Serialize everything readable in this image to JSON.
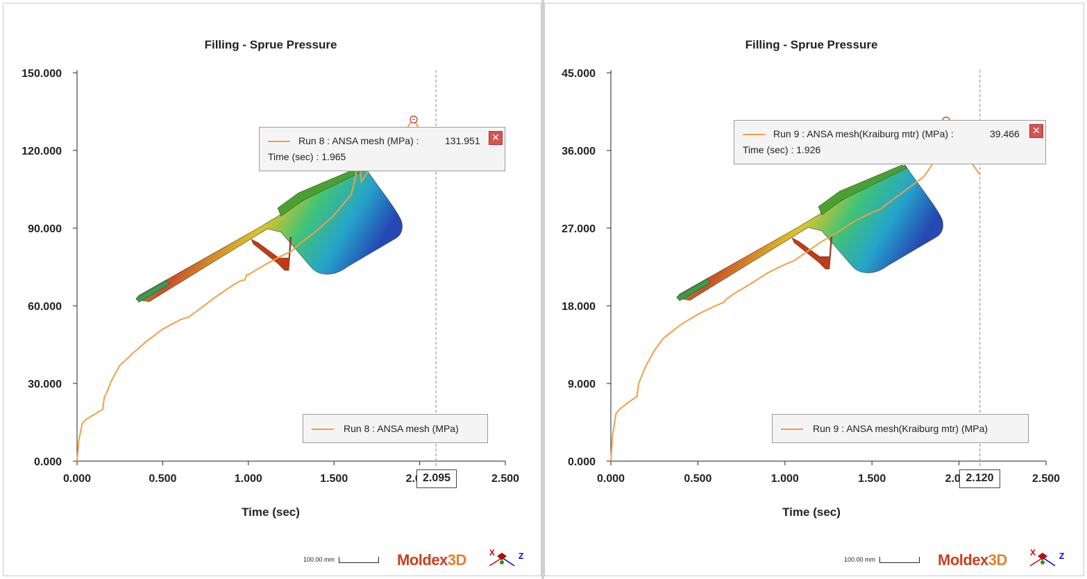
{
  "panels": [
    {
      "title": "Filling - Sprue Pressure",
      "xlabel": "Time (sec)",
      "tooltip": {
        "series": "Run 8 : ANSA mesh (MPa) :",
        "value": "131.951",
        "time": "Time (sec) : 1.965",
        "close_icon": "close-icon"
      },
      "legend": "Run 8 : ANSA mesh (MPa)",
      "cursor_value": "2.095",
      "scale_label": "100.00 mm",
      "logo": "Moldex",
      "logo_suffix": "3D",
      "axis_x": "X",
      "axis_z": "Z"
    },
    {
      "title": "Filling - Sprue Pressure",
      "xlabel": "Time (sec)",
      "tooltip": {
        "series": "Run 9 : ANSA mesh(Kraiburg mtr) (MPa) :",
        "value": "39.466",
        "time": "Time (sec) : 1.926",
        "close_icon": "close-icon"
      },
      "legend": "Run 9 : ANSA mesh(Kraiburg mtr) (MPa)",
      "cursor_value": "2.120",
      "scale_label": "100.00 mm",
      "logo": "Moldex",
      "logo_suffix": "3D",
      "axis_x": "X",
      "axis_z": "Z"
    }
  ],
  "colors": {
    "series": "#f0a040",
    "grid": "#888888",
    "close": "#d9534f"
  },
  "chart_data": [
    {
      "type": "line",
      "title": "Filling - Sprue Pressure",
      "xlabel": "Time (sec)",
      "ylabel": "",
      "xlim": [
        0,
        2.5
      ],
      "ylim": [
        0,
        150
      ],
      "xticks": [
        "0.000",
        "0.500",
        "1.000",
        "1.500",
        "2.000",
        "2.500"
      ],
      "yticks": [
        "0.000",
        "30.000",
        "60.000",
        "90.000",
        "120.000",
        "150.000"
      ],
      "cursor_x": 2.095,
      "marker": {
        "x": 1.965,
        "y": 131.951
      },
      "legend_position": "bottom-right",
      "grid": false,
      "series": [
        {
          "name": "Run 8 : ANSA mesh (MPa)",
          "x": [
            0,
            0.01,
            0.03,
            0.05,
            0.1,
            0.15,
            0.16,
            0.17,
            0.2,
            0.25,
            0.3,
            0.33,
            0.35,
            0.4,
            0.5,
            0.6,
            0.64,
            0.65,
            0.7,
            0.8,
            0.9,
            0.95,
            0.98,
            0.99,
            1.0,
            1.05,
            1.1,
            1.2,
            1.25,
            1.3,
            1.32,
            1.34,
            1.4,
            1.5,
            1.6,
            1.62,
            1.63,
            1.64,
            1.65,
            1.66,
            1.7,
            1.8,
            1.9,
            1.95,
            1.965,
            2.0,
            2.05,
            2.095
          ],
          "y": [
            0,
            8,
            14.5,
            16,
            18,
            20,
            25,
            26,
            31,
            37,
            40,
            42,
            43,
            46,
            51,
            54.5,
            55.5,
            55.5,
            58,
            63,
            67.5,
            69.5,
            70,
            72,
            72,
            74,
            76,
            79.5,
            81,
            84,
            85,
            86,
            89,
            95,
            103,
            108,
            112,
            114,
            115,
            108,
            112,
            119,
            126,
            131,
            131.951,
            128,
            121,
            116
          ]
        }
      ]
    },
    {
      "type": "line",
      "title": "Filling - Sprue Pressure",
      "xlabel": "Time (sec)",
      "ylabel": "",
      "xlim": [
        0,
        2.5
      ],
      "ylim": [
        0,
        45
      ],
      "xticks": [
        "0.000",
        "0.500",
        "1.000",
        "1.500",
        "2.000",
        "2.500"
      ],
      "yticks": [
        "0.000",
        "9.000",
        "18.000",
        "27.000",
        "36.000",
        "45.000"
      ],
      "cursor_x": 2.12,
      "marker": {
        "x": 1.926,
        "y": 39.466
      },
      "legend_position": "bottom-right",
      "grid": false,
      "series": [
        {
          "name": "Run 9 : ANSA mesh(Kraiburg mtr) (MPa)",
          "x": [
            0,
            0.01,
            0.03,
            0.05,
            0.1,
            0.15,
            0.16,
            0.17,
            0.2,
            0.25,
            0.3,
            0.35,
            0.4,
            0.5,
            0.6,
            0.65,
            0.66,
            0.7,
            0.8,
            0.9,
            1.0,
            1.05,
            1.1,
            1.2,
            1.3,
            1.4,
            1.5,
            1.55,
            1.6,
            1.7,
            1.8,
            1.85,
            1.88,
            1.9,
            1.926,
            1.95,
            2.0,
            2.05,
            2.12
          ],
          "y": [
            0,
            3,
            5.5,
            6,
            6.8,
            7.5,
            9,
            9.5,
            11,
            12.8,
            14.2,
            15,
            15.8,
            17,
            18,
            18.4,
            18.7,
            19.3,
            20.5,
            21.8,
            22.8,
            23.2,
            23.9,
            25.3,
            26.5,
            27.8,
            28.8,
            29.2,
            30,
            31.5,
            33,
            34.5,
            36,
            38,
            39.466,
            39.4,
            37.5,
            35.2,
            33.2
          ]
        }
      ]
    }
  ]
}
